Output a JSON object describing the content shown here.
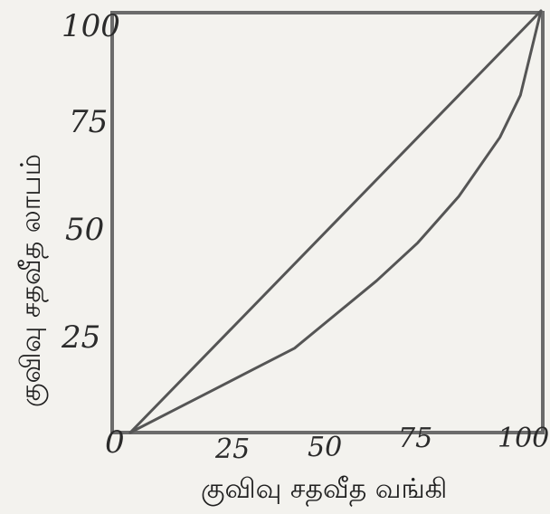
{
  "chart_data": {
    "type": "line",
    "title": "",
    "xlabel": "குவிவு சதவீத வங்கி",
    "ylabel": "குவிவு சதவீத லாபம்",
    "xlim": [
      0,
      100
    ],
    "ylim": [
      0,
      100
    ],
    "x_ticks": [
      "25",
      "50",
      "75",
      "100"
    ],
    "y_ticks": [
      "25",
      "50",
      "75",
      "100"
    ],
    "origin_label": "0",
    "grid": false,
    "legend": "none",
    "colors": {
      "line": "#555555",
      "frame": "#6b6b6b",
      "text": "#2b2b2b"
    },
    "series": [
      {
        "x": [
          0,
          100
        ],
        "y": [
          0,
          100
        ]
      },
      {
        "x": [
          0,
          10,
          20,
          30,
          40,
          50,
          60,
          70,
          80,
          90,
          95,
          100
        ],
        "y": [
          0,
          5,
          10,
          15,
          20,
          28,
          36,
          45,
          56,
          70,
          80,
          100
        ]
      }
    ]
  }
}
